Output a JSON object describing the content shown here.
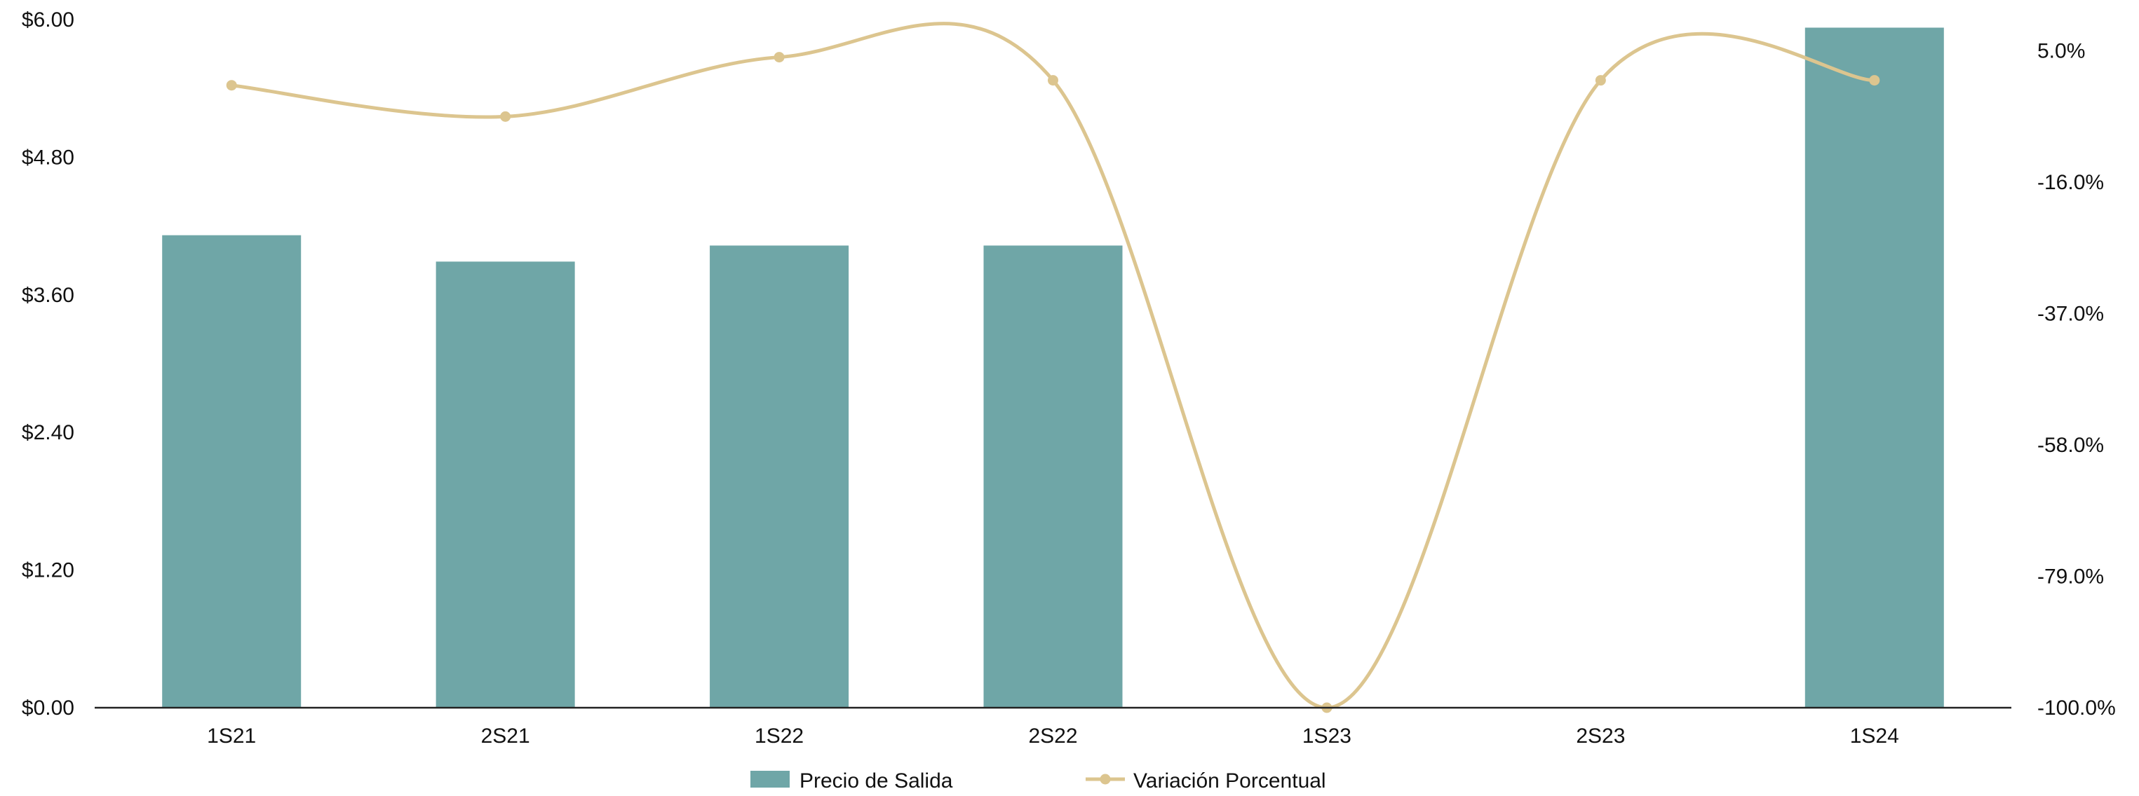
{
  "chart_data": {
    "type": "bar",
    "categories": [
      "1S21",
      "2S21",
      "1S22",
      "2S22",
      "1S23",
      "2S23",
      "1S24"
    ],
    "series": [
      {
        "name": "Precio de Salida",
        "type": "bar",
        "axis": "left",
        "color": "#6fa6a7",
        "values": [
          4.12,
          3.89,
          4.03,
          4.03,
          0,
          0,
          5.93
        ]
      },
      {
        "name": "Variación Porcentual",
        "type": "line",
        "smooth": true,
        "axis": "right",
        "color": "#dcc58f",
        "values": [
          -0.5,
          -5.5,
          4.0,
          0.3,
          -100.0,
          0.3,
          0.3
        ]
      }
    ],
    "y_left": {
      "ylim": [
        0,
        6
      ],
      "ticks": [
        0,
        1.2,
        2.4,
        3.6,
        4.8,
        6.0
      ],
      "tick_labels": [
        "$0.00",
        "$1.20",
        "$2.40",
        "$3.60",
        "$4.80",
        "$6.00"
      ]
    },
    "y_right": {
      "ylim": [
        -100,
        10
      ],
      "ticks": [
        -100,
        -79,
        -58,
        -37,
        -16,
        5
      ],
      "tick_labels": [
        "-100.0%",
        "-79.0%",
        "-58.0%",
        "-37.0%",
        "-16.0%",
        "5.0%"
      ]
    },
    "title": "",
    "xlabel": "",
    "ylabel": "",
    "grid": false,
    "legend": {
      "position": "bottom-center",
      "entries": [
        "Precio de Salida",
        "Variación Porcentual"
      ]
    }
  }
}
